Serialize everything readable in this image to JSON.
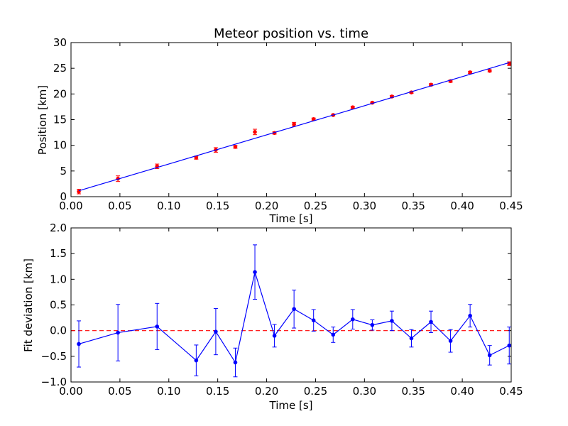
{
  "chart_data": [
    {
      "type": "scatter",
      "title": "Meteor position vs. time",
      "xlabel": "Time [s]",
      "ylabel": "Position [km]",
      "xlim": [
        0.0,
        0.45
      ],
      "ylim": [
        0,
        30
      ],
      "xticks": [
        "0.00",
        "0.05",
        "0.10",
        "0.15",
        "0.20",
        "0.25",
        "0.30",
        "0.35",
        "0.40",
        "0.45"
      ],
      "yticks": [
        "0",
        "5",
        "10",
        "15",
        "20",
        "25",
        "30"
      ],
      "grid": false,
      "series": [
        {
          "kind": "errorbar-points",
          "color": "#ff0000",
          "x": [
            0.008,
            0.048,
            0.088,
            0.128,
            0.148,
            0.168,
            0.188,
            0.208,
            0.228,
            0.248,
            0.268,
            0.288,
            0.308,
            0.328,
            0.348,
            0.368,
            0.388,
            0.408,
            0.428,
            0.448
          ],
          "y": [
            1.0,
            3.5,
            5.9,
            7.6,
            9.1,
            9.7,
            12.6,
            12.4,
            14.1,
            15.1,
            15.9,
            17.4,
            18.3,
            19.5,
            20.3,
            21.8,
            22.5,
            24.2,
            24.5,
            25.9
          ],
          "yerr": [
            0.45,
            0.55,
            0.45,
            0.3,
            0.45,
            0.28,
            0.53,
            0.22,
            0.37,
            0.21,
            0.15,
            0.19,
            0.1,
            0.19,
            0.17,
            0.21,
            0.22,
            0.22,
            0.19,
            0.36
          ]
        },
        {
          "kind": "fit-line",
          "color": "#0000ff",
          "x": [
            0.008,
            0.448
          ],
          "y": [
            1.15,
            26.1
          ]
        }
      ]
    },
    {
      "type": "line",
      "title": "",
      "xlabel": "Time [s]",
      "ylabel": "Fit deviation [km]",
      "xlim": [
        0.0,
        0.45
      ],
      "ylim": [
        -1.0,
        2.0
      ],
      "xticks": [
        "0.00",
        "0.05",
        "0.10",
        "0.15",
        "0.20",
        "0.25",
        "0.30",
        "0.35",
        "0.40",
        "0.45"
      ],
      "yticks": [
        "−1.0",
        "−0.5",
        "0.0",
        "0.5",
        "1.0",
        "1.5",
        "2.0"
      ],
      "grid": false,
      "reference_line": {
        "y": 0.0,
        "style": "dashed",
        "color": "#ff0000"
      },
      "series": [
        {
          "kind": "errorbar-line",
          "color": "#0000ff",
          "x": [
            0.008,
            0.048,
            0.088,
            0.128,
            0.148,
            0.168,
            0.188,
            0.208,
            0.228,
            0.248,
            0.268,
            0.288,
            0.308,
            0.328,
            0.348,
            0.368,
            0.388,
            0.408,
            0.428,
            0.448
          ],
          "y": [
            -0.26,
            -0.04,
            0.08,
            -0.58,
            -0.02,
            -0.62,
            1.14,
            -0.1,
            0.42,
            0.2,
            -0.08,
            0.22,
            0.11,
            0.19,
            -0.15,
            0.17,
            -0.2,
            0.29,
            -0.48,
            -0.29
          ],
          "yerr": [
            0.45,
            0.55,
            0.45,
            0.3,
            0.45,
            0.28,
            0.53,
            0.22,
            0.37,
            0.21,
            0.15,
            0.19,
            0.1,
            0.19,
            0.17,
            0.21,
            0.22,
            0.22,
            0.19,
            0.36
          ]
        }
      ]
    }
  ]
}
